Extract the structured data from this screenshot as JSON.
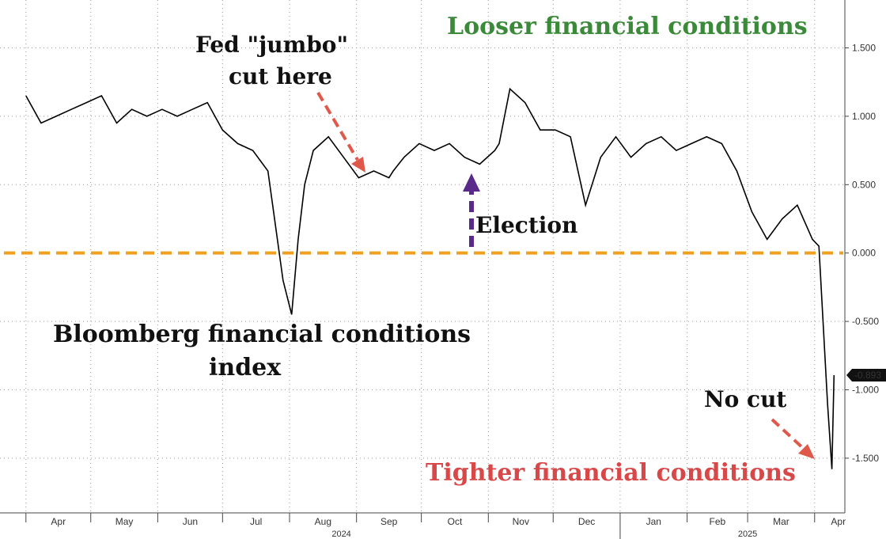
{
  "chart_data": {
    "type": "line",
    "title": "Bloomberg financial conditions index",
    "ylim": [
      -1.9,
      1.85
    ],
    "yticks": [
      "1.500",
      "1.000",
      "0.500",
      "0.000",
      "-0.500",
      "-1.000",
      "-1.500"
    ],
    "ytick_values": [
      1.5,
      1.0,
      0.5,
      0.0,
      -0.5,
      -1.0,
      -1.5
    ],
    "month_labels": [
      "Apr",
      "May",
      "Jun",
      "Jul",
      "Aug",
      "Sep",
      "Oct",
      "Nov",
      "Dec",
      "Jan",
      "Feb",
      "Mar",
      "Apr"
    ],
    "year_labels": [
      "2024",
      "2025"
    ],
    "last_value_label": "-0.893",
    "reference_line": {
      "y": 0.0,
      "color": "#F0A020",
      "style": "dashed"
    },
    "series": [
      {
        "color": "#000000",
        "x": [
          "2024-04-01",
          "2024-04-08",
          "2024-04-15",
          "2024-04-22",
          "2024-04-29",
          "2024-05-06",
          "2024-05-13",
          "2024-05-20",
          "2024-05-27",
          "2024-06-03",
          "2024-06-10",
          "2024-06-17",
          "2024-06-24",
          "2024-07-01",
          "2024-07-08",
          "2024-07-15",
          "2024-07-22",
          "2024-07-29",
          "2024-08-02",
          "2024-08-05",
          "2024-08-08",
          "2024-08-12",
          "2024-08-19",
          "2024-08-26",
          "2024-09-02",
          "2024-09-09",
          "2024-09-16",
          "2024-09-18",
          "2024-09-23",
          "2024-09-30",
          "2024-10-07",
          "2024-10-14",
          "2024-10-21",
          "2024-10-28",
          "2024-11-04",
          "2024-11-06",
          "2024-11-11",
          "2024-11-18",
          "2024-11-25",
          "2024-12-02",
          "2024-12-09",
          "2024-12-16",
          "2024-12-23",
          "2024-12-30",
          "2025-01-06",
          "2025-01-13",
          "2025-01-20",
          "2025-01-27",
          "2025-02-03",
          "2025-02-10",
          "2025-02-17",
          "2025-02-24",
          "2025-03-03",
          "2025-03-10",
          "2025-03-17",
          "2025-03-24",
          "2025-03-31",
          "2025-04-03",
          "2025-04-07",
          "2025-04-09",
          "2025-04-10"
        ],
        "y": [
          1.15,
          0.95,
          1.0,
          1.05,
          1.1,
          1.15,
          0.95,
          1.05,
          1.0,
          1.05,
          1.0,
          1.05,
          1.1,
          0.9,
          0.8,
          0.75,
          0.6,
          -0.2,
          -0.45,
          0.1,
          0.5,
          0.75,
          0.85,
          0.7,
          0.55,
          0.6,
          0.55,
          0.6,
          0.7,
          0.8,
          0.75,
          0.8,
          0.7,
          0.65,
          0.75,
          0.8,
          1.2,
          1.1,
          0.9,
          0.9,
          0.85,
          0.35,
          0.7,
          0.85,
          0.7,
          0.8,
          0.85,
          0.75,
          0.8,
          0.85,
          0.8,
          0.6,
          0.3,
          0.1,
          0.25,
          0.35,
          0.1,
          0.05,
          -1.1,
          -1.58,
          -0.893
        ]
      }
    ]
  },
  "annotations": {
    "looser": "Looser financial conditions",
    "tighter": "Tighter financial conditions",
    "fed_line1": "Fed \"jumbo\"",
    "fed_line2": "cut here",
    "election": "Election",
    "title_line1": "Bloomberg financial conditions",
    "title_line2": "index",
    "no_cut": "No cut"
  },
  "colors": {
    "looser": "#3A8A3A",
    "tighter": "#D84848",
    "arrow_red": "#E0584A",
    "arrow_purple": "#5A2A8A",
    "zero_line": "#F0A020"
  }
}
